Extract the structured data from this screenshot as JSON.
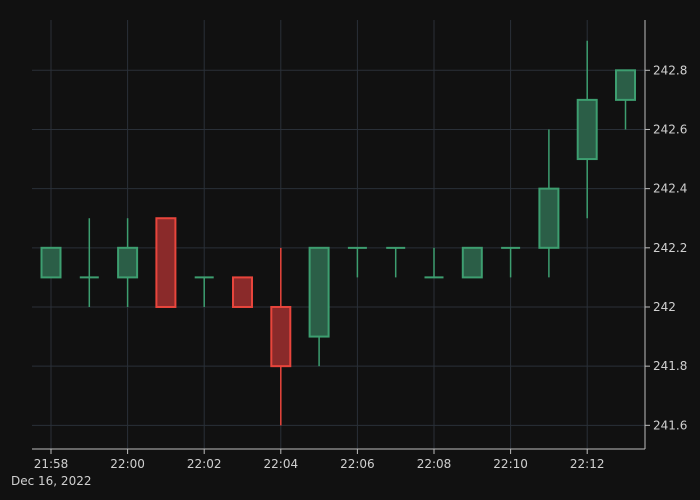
{
  "chart_data": {
    "type": "candlestick",
    "date_label": "Dec 16, 2022",
    "x_ticks": [
      "21:58",
      "22:00",
      "22:02",
      "22:04",
      "22:06",
      "22:08",
      "22:10",
      "22:12"
    ],
    "y_ticks": [
      "241.6",
      "241.8",
      "242",
      "242.2",
      "242.4",
      "242.6",
      "242.8"
    ],
    "ylim": [
      241.52,
      242.97
    ],
    "grid": true,
    "y_axis_side": "right",
    "colors": {
      "background": "#111111",
      "grid": "#2a3038",
      "axis": "#bdbdbd",
      "increasing": "#3d9e70",
      "increasing_fill": "#2b5e47",
      "decreasing": "#e8453c",
      "decreasing_fill": "#8a2a2a"
    },
    "candles": [
      {
        "time": "21:58",
        "open": 242.1,
        "high": 242.2,
        "low": 242.1,
        "close": 242.2
      },
      {
        "time": "21:59",
        "open": 242.1,
        "high": 242.3,
        "low": 242.0,
        "close": 242.1
      },
      {
        "time": "22:00",
        "open": 242.1,
        "high": 242.3,
        "low": 242.0,
        "close": 242.2
      },
      {
        "time": "22:01",
        "open": 242.3,
        "high": 242.3,
        "low": 242.0,
        "close": 242.0
      },
      {
        "time": "22:02",
        "open": 242.1,
        "high": 242.1,
        "low": 242.0,
        "close": 242.1
      },
      {
        "time": "22:03",
        "open": 242.1,
        "high": 242.1,
        "low": 242.0,
        "close": 242.0
      },
      {
        "time": "22:04",
        "open": 242.0,
        "high": 242.2,
        "low": 241.6,
        "close": 241.8
      },
      {
        "time": "22:05",
        "open": 241.9,
        "high": 242.2,
        "low": 241.8,
        "close": 242.2
      },
      {
        "time": "22:06",
        "open": 242.2,
        "high": 242.2,
        "low": 242.1,
        "close": 242.2
      },
      {
        "time": "22:07",
        "open": 242.2,
        "high": 242.2,
        "low": 242.1,
        "close": 242.2
      },
      {
        "time": "22:08",
        "open": 242.1,
        "high": 242.2,
        "low": 242.1,
        "close": 242.1
      },
      {
        "time": "22:09",
        "open": 242.1,
        "high": 242.2,
        "low": 242.1,
        "close": 242.2
      },
      {
        "time": "22:10",
        "open": 242.2,
        "high": 242.2,
        "low": 242.1,
        "close": 242.2
      },
      {
        "time": "22:11",
        "open": 242.2,
        "high": 242.6,
        "low": 242.1,
        "close": 242.4
      },
      {
        "time": "22:12",
        "open": 242.5,
        "high": 242.9,
        "low": 242.3,
        "close": 242.7
      },
      {
        "time": "22:13",
        "open": 242.7,
        "high": 242.8,
        "low": 242.6,
        "close": 242.8
      }
    ]
  }
}
